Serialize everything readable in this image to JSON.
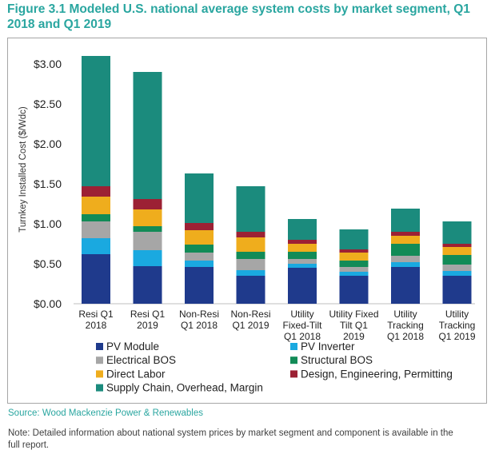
{
  "chart_data": {
    "type": "bar",
    "stacked": true,
    "title": "Figure 3.1 Modeled U.S. national average system costs by market segment, Q1 2018 and Q1 2019",
    "ylabel": "Turnkey Installed Cost ($/Wdc)",
    "xlabel": "",
    "ylim": [
      0,
      3.0
    ],
    "yticks": [
      "$0.00",
      "$0.50",
      "$1.00",
      "$1.50",
      "$2.00",
      "$2.50",
      "$3.00"
    ],
    "categories": [
      [
        "Resi Q1",
        "2018"
      ],
      [
        "Resi Q1",
        "2019"
      ],
      [
        "Non-Resi",
        "Q1 2018"
      ],
      [
        "Non-Resi",
        "Q1 2019"
      ],
      [
        "Utility",
        "Fixed-Tilt",
        "Q1 2018"
      ],
      [
        "Utility Fixed",
        "Tilt Q1",
        "2019"
      ],
      [
        "Utility",
        "Tracking",
        "Q1 2018"
      ],
      [
        "Utility",
        "Tracking",
        "Q1 2019"
      ]
    ],
    "series": [
      {
        "name": "PV Module",
        "color": "#1f3a8c",
        "values": [
          0.62,
          0.47,
          0.46,
          0.35,
          0.45,
          0.35,
          0.46,
          0.35
        ]
      },
      {
        "name": "PV Inverter",
        "color": "#1aa9e0",
        "values": [
          0.2,
          0.2,
          0.08,
          0.07,
          0.05,
          0.05,
          0.06,
          0.06
        ]
      },
      {
        "name": "Electrical BOS",
        "color": "#a6a6a6",
        "values": [
          0.21,
          0.23,
          0.1,
          0.14,
          0.06,
          0.06,
          0.08,
          0.08
        ]
      },
      {
        "name": "Structural BOS",
        "color": "#128b57",
        "values": [
          0.09,
          0.07,
          0.1,
          0.09,
          0.09,
          0.08,
          0.15,
          0.12
        ]
      },
      {
        "name": "Direct Labor",
        "color": "#efad1d",
        "values": [
          0.22,
          0.21,
          0.18,
          0.18,
          0.1,
          0.1,
          0.1,
          0.1
        ]
      },
      {
        "name": "Design, Engineering, Permitting",
        "color": "#9c2134",
        "values": [
          0.13,
          0.13,
          0.09,
          0.07,
          0.05,
          0.04,
          0.05,
          0.04
        ]
      },
      {
        "name": "Supply Chain, Overhead, Margin",
        "color": "#1b8b7d",
        "values": [
          1.63,
          1.59,
          0.62,
          0.57,
          0.26,
          0.25,
          0.29,
          0.28
        ]
      }
    ],
    "legend_placement": "bottom"
  },
  "source": "Source: Wood Mackenzie Power & Renewables",
  "note": "Note: Detailed information about national system prices by market segment and component is available in the full report."
}
